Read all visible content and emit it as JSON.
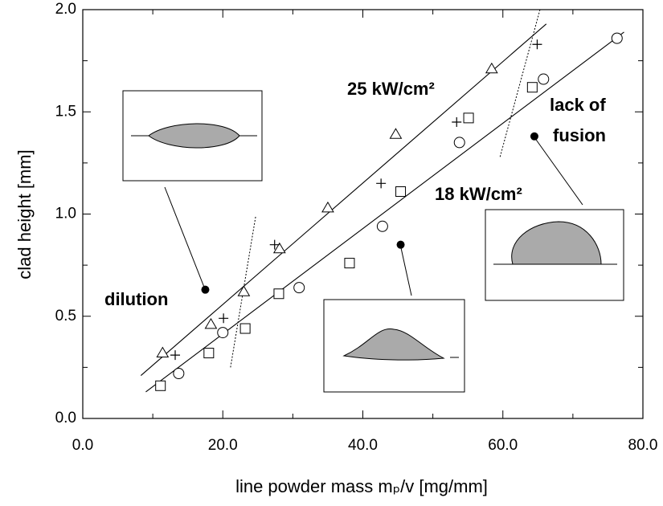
{
  "chart_data": {
    "type": "scatter",
    "xlabel": "line powder mass mₚ/v [mg/mm]",
    "ylabel": "clad height [mm]",
    "xlim": [
      0,
      80
    ],
    "ylim": [
      0,
      2
    ],
    "xticks": [
      {
        "value": 0,
        "label": "0.0"
      },
      {
        "value": 20,
        "label": "20.0"
      },
      {
        "value": 40,
        "label": "40.0"
      },
      {
        "value": 60,
        "label": "60.0"
      },
      {
        "value": 80,
        "label": "80.0"
      }
    ],
    "yticks": [
      {
        "value": 0,
        "label": "0.0"
      },
      {
        "value": 0.5,
        "label": "0.5"
      },
      {
        "value": 1,
        "label": "1.0"
      },
      {
        "value": 1.5,
        "label": "1.5"
      },
      {
        "value": 2,
        "label": "2.0"
      }
    ],
    "minor_xticks": [
      10,
      30,
      50,
      70
    ],
    "minor_yticks": [
      0.25,
      0.75,
      1.25,
      1.75
    ],
    "color": "#000000",
    "series": [
      {
        "marker": "triangle",
        "x": [
          11.4,
          18.3,
          23.0,
          28.1,
          35.0,
          44.7,
          58.4
        ],
        "values": [
          0.32,
          0.46,
          0.62,
          0.83,
          1.03,
          1.39,
          1.71
        ]
      },
      {
        "marker": "plus",
        "x": [
          13.2,
          20.1,
          27.4,
          42.6,
          53.4,
          64.9
        ],
        "values": [
          0.31,
          0.49,
          0.85,
          1.15,
          1.45,
          1.83
        ]
      },
      {
        "marker": "square",
        "x": [
          11.1,
          18.0,
          23.2,
          28.0,
          38.1,
          45.4,
          55.1,
          64.2
        ],
        "values": [
          0.16,
          0.32,
          0.44,
          0.61,
          0.76,
          1.11,
          1.47,
          1.62
        ]
      },
      {
        "marker": "circle",
        "x": [
          13.7,
          20.0,
          30.9,
          42.8,
          53.8,
          65.8,
          76.3
        ],
        "values": [
          0.22,
          0.42,
          0.64,
          0.94,
          1.35,
          1.66,
          1.86
        ]
      },
      {
        "marker": "dot",
        "x": [
          17.5,
          45.4,
          64.5
        ],
        "values": [
          0.63,
          0.85,
          1.38
        ]
      }
    ],
    "fits": [
      {
        "style": "solid",
        "x": [
          8.3,
          66.2
        ],
        "values": [
          0.21,
          1.93
        ]
      },
      {
        "style": "solid",
        "x": [
          9.0,
          77.3
        ],
        "values": [
          0.13,
          1.89
        ]
      },
      {
        "style": "dotted",
        "x": [
          21.1,
          24.7
        ],
        "values": [
          0.25,
          0.99
        ]
      },
      {
        "style": "dotted",
        "x": [
          59.6,
          65.3
        ],
        "values": [
          1.28,
          2.0
        ]
      }
    ],
    "annotations": {
      "high": "25 kW/cm²",
      "low": "18 kW/cm²",
      "dilution": "dilution",
      "lack": [
        "lack of",
        "fusion"
      ]
    }
  }
}
